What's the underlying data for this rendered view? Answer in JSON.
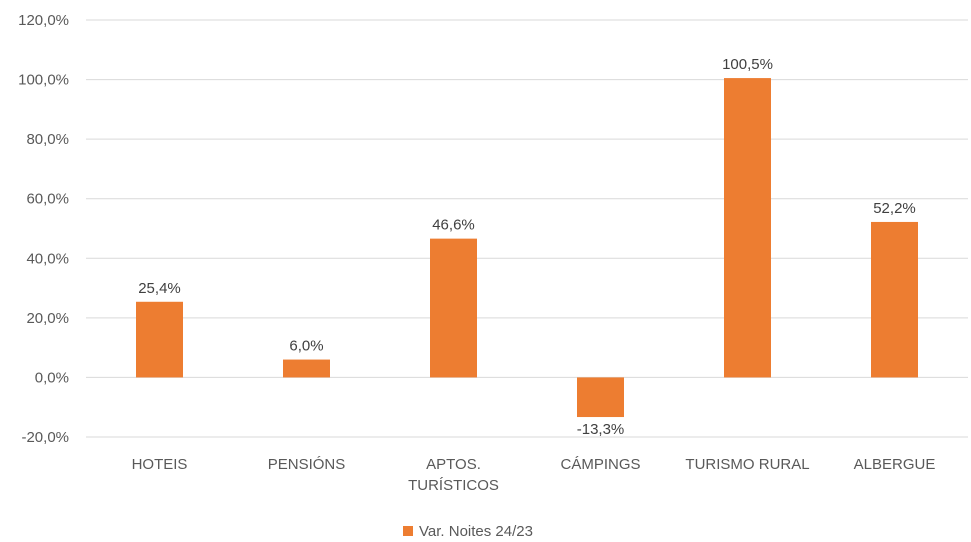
{
  "chart_data": {
    "type": "bar",
    "categories": [
      [
        "HOTEIS"
      ],
      [
        "PENSIÓNS"
      ],
      [
        "APTOS.",
        "TURÍSTICOS"
      ],
      [
        "CÁMPINGS"
      ],
      [
        "TURISMO RURAL"
      ],
      [
        "ALBERGUE"
      ]
    ],
    "series": [
      {
        "name": "Var. Noites 24/23",
        "values": [
          25.4,
          6.0,
          46.6,
          -13.3,
          100.5,
          52.2
        ],
        "labels": [
          "25,4%",
          "6,0%",
          "46,6%",
          "-13,3%",
          "100,5%",
          "52,2%"
        ],
        "color": "#ED7D31"
      }
    ],
    "title": "",
    "xlabel": "",
    "ylabel": "",
    "ylim": [
      -20,
      120
    ],
    "yticks": [
      120,
      100,
      80,
      60,
      40,
      20,
      0,
      -20
    ],
    "ytick_labels": [
      "120,0%",
      "100,0%",
      "80,0%",
      "60,0%",
      "40,0%",
      "20,0%",
      "0,0%",
      "-20,0%"
    ],
    "grid": true,
    "legend_position": "bottom",
    "colors": {
      "bar": "#ED7D31",
      "grid": "#D9D9D9",
      "text": "#595959"
    }
  }
}
